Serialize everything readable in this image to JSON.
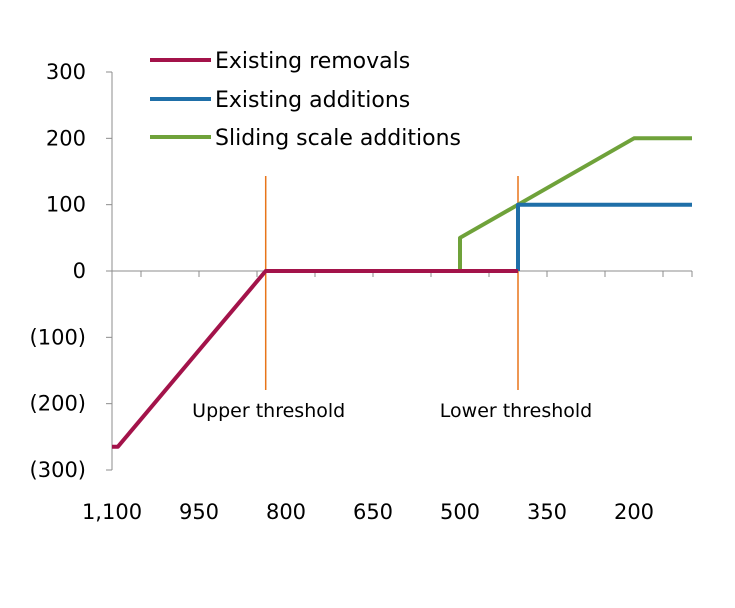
{
  "chart_data": {
    "type": "line",
    "x_reversed": true,
    "xlim": [
      1100,
      100
    ],
    "ylim": [
      -300,
      300
    ],
    "x_ticks": [
      1100,
      950,
      800,
      650,
      500,
      350,
      200
    ],
    "x_tick_labels": [
      "1,100",
      "950",
      "800",
      "650",
      "500",
      "350",
      "200"
    ],
    "y_ticks": [
      300,
      200,
      100,
      0,
      -100,
      -200,
      -300
    ],
    "y_tick_labels": [
      "300",
      "200",
      "100",
      "0",
      "(100)",
      "(200)",
      "(300)"
    ],
    "grid": false,
    "legend_position": "top",
    "series": [
      {
        "name": "Existing removals",
        "color": "#A3134A",
        "points": [
          [
            1100,
            -265
          ],
          [
            1090,
            -265
          ],
          [
            835,
            0
          ],
          [
            400,
            0
          ]
        ]
      },
      {
        "name": "Existing additions",
        "color": "#1F6FA8",
        "points": [
          [
            400,
            0
          ],
          [
            400,
            100
          ],
          [
            100,
            100
          ]
        ]
      },
      {
        "name": "Sliding scale additions",
        "color": "#6FA23A",
        "points": [
          [
            500,
            0
          ],
          [
            500,
            50
          ],
          [
            400,
            100
          ],
          [
            200,
            200
          ],
          [
            100,
            200
          ]
        ]
      }
    ],
    "thresholds": [
      {
        "label": "Upper threshold",
        "x": 835,
        "color": "#E8751A"
      },
      {
        "label": "Lower threshold",
        "x": 400,
        "color": "#E8751A"
      }
    ]
  }
}
